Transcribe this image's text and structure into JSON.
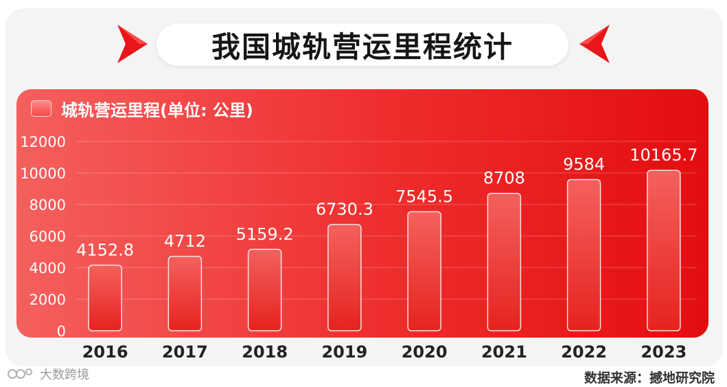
{
  "chart_data": {
    "type": "bar",
    "title": "我国城轨营运里程统计",
    "categories": [
      "2016",
      "2017",
      "2018",
      "2019",
      "2020",
      "2021",
      "2022",
      "2023"
    ],
    "series": [
      {
        "name": "城轨营运里程(单位: 公里)",
        "values": [
          4152.8,
          4712,
          5159.2,
          6730.3,
          7545.5,
          8708,
          9584,
          10165.7
        ],
        "labels": [
          "4152.8",
          "4712",
          "5159.2",
          "6730.3",
          "7545.5",
          "8708",
          "9584",
          "10165.7"
        ]
      }
    ],
    "ylim": [
      0,
      12000
    ],
    "yticks": [
      "0",
      "2000",
      "4000",
      "6000",
      "8000",
      "10000",
      "12000"
    ],
    "ytick_values": [
      0,
      2000,
      4000,
      6000,
      8000,
      10000,
      12000
    ],
    "grid": true,
    "legend_position": "top-left"
  },
  "footer": {
    "watermark": "大数跨境",
    "source": "数据来源：撼地研究院"
  },
  "colors": {
    "panel_start": "#f4605e",
    "panel_end": "#e30d10",
    "chevron": "#e8151b",
    "bar_top": "#f25a56",
    "bar_bottom": "#e72a26"
  },
  "icons": {
    "left": "chevron-right-icon",
    "right": "chevron-left-icon",
    "watermark": "watermark-logo-icon"
  }
}
